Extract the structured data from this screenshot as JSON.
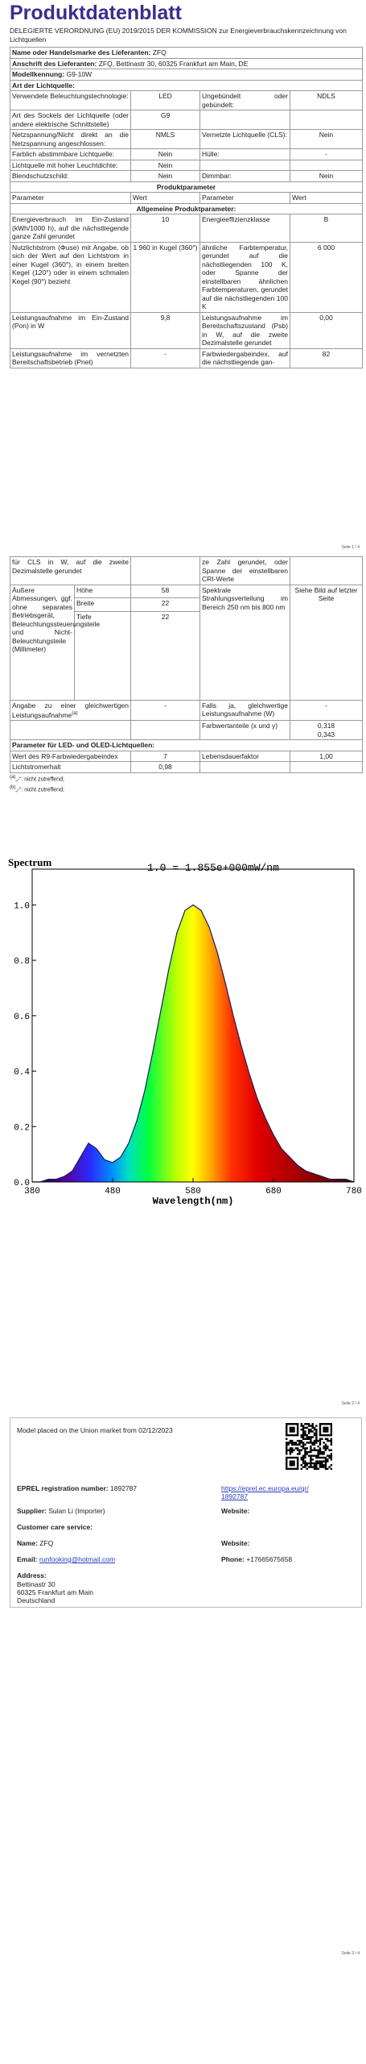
{
  "header": {
    "title": "Produktdatenblatt",
    "subtitle": "DELEGIERTE VERORDNUNG (EU) 2019/2015 DER KOMMISSION zur Energieverbrauchskennzeichnung von Lichtquellen"
  },
  "supplier": {
    "name_label": "Name oder Handelsmarke des Lieferanten:",
    "name": "ZFQ",
    "address_label": "Anschrift des Lieferanten:",
    "address": "ZFQ, Bettinastr 30, 60325 Frankfurt am Main, DE",
    "model_label": "Modellkennung:",
    "model": "G9-10W"
  },
  "light_source": {
    "heading": "Art der Lichtquelle:",
    "rows": [
      [
        "Verwendete Beleuchtungstechnologie:",
        "LED",
        "Ungebündelt oder gebündelt:",
        "NDLS"
      ],
      [
        "Art des Sockels der Lichtquelle (oder andere elektrische Schnittstelle)",
        "G9"
      ],
      [
        "Netzspannung/Nicht direkt an die Netzspannung angeschlossen:",
        "NMLS",
        "Vernetzte Lichtquelle (CLS):",
        "Nein"
      ],
      [
        "Farblich abstimmbare Lichtquelle:",
        "Nein",
        "Hülle:",
        "-"
      ],
      [
        "Lichtquelle mit hoher Leuchtdichte:",
        "Nein"
      ],
      [
        "Blendschutzschild:",
        "Nein",
        "Dimmbar:",
        "Nein"
      ]
    ]
  },
  "parameters": {
    "heading": "Produktparameter",
    "columns": [
      "Parameter",
      "Wert",
      "Parameter",
      "Wert"
    ],
    "general_heading": "Allgemeine Produktparameter:",
    "rows": [
      [
        "Energieverbrauch im Ein-Zustand (kWh/1000 h), auf die nächstliegende ganze Zahl gerundet",
        "10",
        "Energieeffizienzklasse",
        "B"
      ],
      [
        "Nutzlichtstrom (Φuse) mit Angabe, ob sich der Wert auf den Lichtstrom in einer Kugel (360°), in einem breiten Kegel (120°) oder in einem schmalen Kegel (90°) bezieht",
        "1 960 in Kugel (360°)",
        "ähnliche Farbtemperatur, gerundet auf die nächstliegenden 100 K, oder Spanne der einstellbaren ähnlichen Farbtemperaturen, gerundet auf die nächstliegenden 100 K",
        "6 000"
      ],
      [
        "Leistungsaufnahme im Ein-Zustand (Pon) in W",
        "9,8",
        "Leistungsaufnahme im Bereitschaftszustand (Psb) in W, auf die zweite Dezimalstelle gerundet",
        "0,00"
      ],
      [
        "Leistungsaufnahme im vernetzten Bereitschaftsbetrieb (Pnet)",
        "-",
        "Farbwiedergabeindex, auf die nächstliegende gan-",
        "82"
      ]
    ],
    "continued": [
      "für CLS in W, auf die zweite Dezimalstelle gerundet",
      "ze Zahl gerundet, oder Spanne der einstellbaren CRI-Werte"
    ],
    "dimensions": {
      "label": "Äußere Abmessungen, ggf. ohne separates Betriebsgerät, Beleuchtungssteuerungsteile und Nicht-Beleuchtungsteile (Millimeter)",
      "items": [
        [
          "Höhe",
          58
        ],
        [
          "Breite",
          22
        ],
        [
          "Tiefe",
          22
        ]
      ],
      "spectral_label": "Spektrale Strahlungsverteilung im Bereich 250 nm bis 800 nm",
      "spectral_value": "Siehe Bild auf letzter Seite"
    },
    "equivalent": {
      "label": "Angabe zu einer gleichwertigen Leistungsaufnahme",
      "note": "(a)",
      "value": "-",
      "label2": "Falls ja, gleichwertige Leistungsaufnahme (W)",
      "value2": "-"
    },
    "chromaticity": {
      "label": "Farbwertanteile (x und y)",
      "x": "0,318",
      "y": "0,343"
    },
    "led_heading": "Parameter für LED- und OLED-Lichtquellen:",
    "led_rows": [
      [
        "Wert des R9-Farbwiedergabeindex",
        "7",
        "Lebensdauerfaktor",
        "1,00"
      ],
      [
        "Lichtstromerhalt",
        "0,98"
      ]
    ],
    "footnotes": [
      {
        "mark": "(a)",
        "text": "„-“: nicht zutreffend;"
      },
      {
        "mark": "(b)",
        "text": "„-“: nicht zutreffend;"
      }
    ]
  },
  "spectrum": {
    "type": "line",
    "y_label": "Spectrum",
    "title": "1.0 = 1.855e+000mW/nm",
    "x_label": "Wavelength(nm)",
    "x": [
      380,
      390,
      400,
      410,
      420,
      430,
      440,
      450,
      460,
      470,
      480,
      490,
      500,
      510,
      520,
      530,
      540,
      550,
      560,
      570,
      580,
      590,
      600,
      610,
      620,
      630,
      640,
      650,
      660,
      670,
      680,
      690,
      700,
      710,
      720,
      730,
      740,
      750,
      760,
      770,
      780
    ],
    "values": [
      0,
      0,
      0.01,
      0.01,
      0.02,
      0.04,
      0.09,
      0.14,
      0.12,
      0.08,
      0.07,
      0.09,
      0.14,
      0.22,
      0.33,
      0.47,
      0.62,
      0.77,
      0.9,
      0.98,
      1,
      0.98,
      0.92,
      0.83,
      0.72,
      0.6,
      0.49,
      0.39,
      0.3,
      0.23,
      0.17,
      0.12,
      0.09,
      0.06,
      0.04,
      0.03,
      0.02,
      0.01,
      0.01,
      0.01,
      0
    ],
    "xlim": [
      380,
      780
    ],
    "ylim": [
      0,
      1.1
    ],
    "xticks": [
      380,
      480,
      580,
      680,
      780
    ],
    "yticks": [
      {
        "value": 0,
        "label": "0.0"
      },
      {
        "value": 0.2,
        "label": "0.2"
      },
      {
        "value": 0.4,
        "label": "0.4"
      },
      {
        "value": 0.6,
        "label": "0.6"
      },
      {
        "value": 0.8,
        "label": "0.8"
      },
      {
        "value": 1,
        "label": "1.0"
      }
    ]
  },
  "eprel": {
    "placed": "Model placed on the Union market from 02/12/2023",
    "reg_label": "EPREL registration number:",
    "reg": "1892787",
    "url": "https://eprel.ec.europa.eu/qr/1892787",
    "supplier_label": "Supplier:",
    "supplier": "Sulan Li (Importer)",
    "website_label": "Website:",
    "care_label": "Customer care service:",
    "name_label": "Name:",
    "name": "ZFQ",
    "website2_label": "Website:",
    "email_label": "Email:",
    "email": "runfooking@hotmail.com",
    "phone_label": "Phone:",
    "phone": "+17665675658",
    "address_label": "Address:",
    "address": [
      "Bettinastr 30",
      "60325 Frankfurt am Main",
      "Deutschland"
    ]
  },
  "pages": [
    "Seite 1 / 4",
    "Seite 2 / 4",
    "Seite 3 / 4"
  ]
}
